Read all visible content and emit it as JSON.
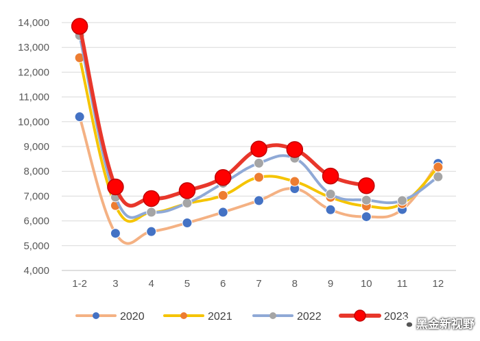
{
  "chart_data": {
    "type": "line",
    "title": "",
    "xlabel": "",
    "ylabel": "",
    "categories": [
      "1-2",
      "3",
      "4",
      "5",
      "6",
      "7",
      "8",
      "9",
      "10",
      "11",
      "12"
    ],
    "ylim": [
      4000,
      14000
    ],
    "yticks": [
      4000,
      5000,
      6000,
      7000,
      8000,
      9000,
      10000,
      11000,
      12000,
      13000,
      14000
    ],
    "ytick_labels": [
      "4,000",
      "5,000",
      "6,000",
      "7,000",
      "8,000",
      "9,000",
      "10,000",
      "11,000",
      "12,000",
      "13,000",
      "14,000"
    ],
    "grid": true,
    "legend_position": "bottom",
    "series": [
      {
        "name": "2020",
        "line_color": "#f4b183",
        "marker_color": "#4472c4",
        "marker": "small",
        "values": [
          10200,
          5500,
          5570,
          5920,
          6350,
          6820,
          7300,
          6450,
          6170,
          6460,
          8320
        ]
      },
      {
        "name": "2021",
        "line_color": "#f5c400",
        "marker_color": "#ed7d31",
        "marker": "small",
        "values": [
          12580,
          6620,
          6340,
          6700,
          7030,
          7760,
          7590,
          6950,
          6600,
          6700,
          8170
        ]
      },
      {
        "name": "2022",
        "line_color": "#8fa9d6",
        "marker_color": "#a5a5a5",
        "marker": "small",
        "values": [
          13480,
          6960,
          6350,
          6720,
          7520,
          8330,
          8530,
          7080,
          6840,
          6820,
          7780
        ]
      },
      {
        "name": "2023",
        "line_color": "#e8372b",
        "marker_color": "#ff0000",
        "marker": "large",
        "values": [
          13850,
          7370,
          6900,
          7220,
          7750,
          8900,
          8880,
          7810,
          7420,
          null,
          null
        ]
      }
    ]
  },
  "legend_clip": "2023",
  "watermark": {
    "text": "黑金新视野",
    "icon": "wechat-icon"
  }
}
